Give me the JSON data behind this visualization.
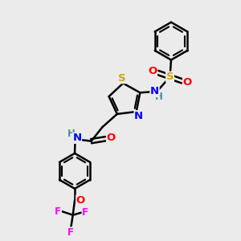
{
  "bg_color": "#ebebeb",
  "bond_color": "#000000",
  "bond_width": 1.8,
  "atom_colors": {
    "C": "#000000",
    "H": "#4a9090",
    "N": "#0000ff",
    "O": "#ff0000",
    "S": "#ccaa00",
    "F": "#ff00ff"
  },
  "font_size": 8.5,
  "fig_size": [
    3.0,
    3.0
  ],
  "dpi": 100,
  "figsize_inches": [
    3.0,
    3.0
  ]
}
